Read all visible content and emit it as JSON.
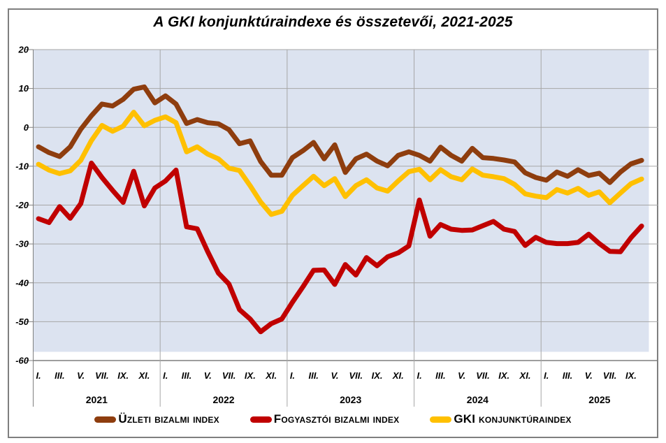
{
  "chart_data": {
    "type": "line",
    "title": "A GKI konjunktúraindexe és összetevői, 2021-2025",
    "x_axis": {
      "years": [
        {
          "label": "2021",
          "months": 12
        },
        {
          "label": "2022",
          "months": 12
        },
        {
          "label": "2023",
          "months": 12
        },
        {
          "label": "2024",
          "months": 12
        },
        {
          "label": "2025",
          "months": 10
        }
      ],
      "month_tick_labels": [
        "I.",
        "III.",
        "V.",
        "VII.",
        "IX.",
        "XI."
      ]
    },
    "y_axis": {
      "ticks": [
        20,
        10,
        0,
        -10,
        -20,
        -30,
        -40,
        -50,
        -60
      ],
      "range": [
        -60,
        20
      ]
    },
    "grid": true,
    "legend_position": "bottom",
    "series": [
      {
        "name": "Üzleti bizalmi index",
        "color": "#8E3D0E",
        "values": [
          -5.0,
          -6.5,
          -7.5,
          -5.0,
          -0.5,
          3.0,
          6.0,
          5.5,
          7.2,
          9.8,
          10.4,
          6.3,
          8.1,
          6.0,
          1.0,
          2.0,
          1.2,
          0.9,
          -0.6,
          -4.2,
          -3.5,
          -8.8,
          -12.3,
          -12.3,
          -7.8,
          -6.0,
          -3.9,
          -8.1,
          -4.5,
          -11.6,
          -8.1,
          -6.9,
          -8.7,
          -9.9,
          -7.2,
          -6.3,
          -7.2,
          -8.7,
          -5.1,
          -7.2,
          -8.7,
          -5.4,
          -7.8,
          -8.0,
          -8.4,
          -8.9,
          -11.7,
          -12.9,
          -13.6,
          -11.5,
          -12.6,
          -10.9,
          -12.4,
          -11.8,
          -14.2,
          -11.5,
          -9.4,
          -8.5
        ]
      },
      {
        "name": "Fogyasztói bizalmi index",
        "color": "#C00000",
        "values": [
          -23.5,
          -24.5,
          -20.4,
          -23.4,
          -19.6,
          -9.2,
          -12.9,
          -16.2,
          -19.3,
          -11.3,
          -20.2,
          -15.6,
          -13.8,
          -11.0,
          -25.6,
          -26.1,
          -32.0,
          -37.5,
          -40.3,
          -46.9,
          -49.3,
          -52.6,
          -50.5,
          -49.3,
          -45.0,
          -41.0,
          -36.8,
          -36.7,
          -40.4,
          -35.3,
          -38.0,
          -33.5,
          -35.6,
          -33.3,
          -32.3,
          -30.5,
          -18.7,
          -28.0,
          -25.0,
          -26.2,
          -26.5,
          -26.4,
          -25.3,
          -24.2,
          -26.2,
          -26.8,
          -30.4,
          -28.3,
          -29.6,
          -29.9,
          -29.9,
          -29.6,
          -27.5,
          -29.9,
          -31.9,
          -32.0,
          -28.4,
          -25.4
        ]
      },
      {
        "name": "GKI konjunktúraindex",
        "color": "#FFC000",
        "values": [
          -9.5,
          -11.0,
          -11.9,
          -11.2,
          -8.5,
          -3.4,
          0.5,
          -1.0,
          0.3,
          3.9,
          0.4,
          1.8,
          2.7,
          1.2,
          -6.3,
          -5.0,
          -6.9,
          -8.1,
          -10.5,
          -11.1,
          -15.0,
          -19.2,
          -22.4,
          -21.6,
          -17.5,
          -15.0,
          -12.6,
          -15.0,
          -13.2,
          -17.8,
          -15.0,
          -13.5,
          -15.6,
          -16.4,
          -13.8,
          -11.4,
          -10.8,
          -13.5,
          -10.9,
          -12.7,
          -13.5,
          -10.7,
          -12.3,
          -12.7,
          -13.2,
          -14.7,
          -17.1,
          -17.7,
          -18.1,
          -16.0,
          -16.9,
          -15.7,
          -17.5,
          -16.6,
          -19.4,
          -16.9,
          -14.5,
          -13.3
        ]
      }
    ]
  },
  "colors": {
    "plot_background": "#DCE3F0",
    "gridline": "#A6A6A6",
    "axis": "#7F7F7F",
    "frame": "#7F7F7F",
    "text": "#000000"
  }
}
